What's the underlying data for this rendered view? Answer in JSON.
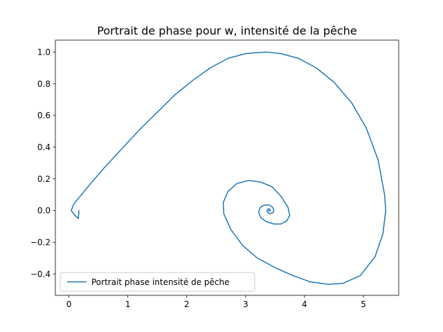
{
  "chart_data": {
    "type": "line",
    "title": "Portrait de phase pour w, intensité de la pêche",
    "xlabel": "",
    "ylabel": "",
    "xlim": [
      -0.23,
      5.6
    ],
    "ylim": [
      -0.535,
      1.075
    ],
    "x_ticks": [
      0,
      1,
      2,
      3,
      4,
      5
    ],
    "y_ticks": [
      -0.4,
      -0.2,
      0.0,
      0.2,
      0.4,
      0.6,
      0.8,
      1.0
    ],
    "y_tick_labels": [
      "−0.4",
      "−0.2",
      "0.0",
      "0.2",
      "0.4",
      "0.6",
      "0.8",
      "1.0"
    ],
    "grid": false,
    "legend_position": "lower-left",
    "series": [
      {
        "name": "Portrait phase intensité de pêche",
        "color": "#1f77b4",
        "points": [
          [
            0.17,
            0.0
          ],
          [
            0.16,
            -0.05
          ],
          [
            0.1,
            -0.03
          ],
          [
            0.04,
            0.0
          ],
          [
            0.08,
            0.04
          ],
          [
            0.3,
            0.14
          ],
          [
            0.6,
            0.27
          ],
          [
            0.9,
            0.39
          ],
          [
            1.2,
            0.51
          ],
          [
            1.5,
            0.62
          ],
          [
            1.8,
            0.73
          ],
          [
            2.1,
            0.82
          ],
          [
            2.4,
            0.9
          ],
          [
            2.7,
            0.96
          ],
          [
            3.0,
            0.99
          ],
          [
            3.35,
            1.0
          ],
          [
            3.6,
            0.99
          ],
          [
            3.9,
            0.96
          ],
          [
            4.2,
            0.9
          ],
          [
            4.5,
            0.81
          ],
          [
            4.8,
            0.68
          ],
          [
            5.05,
            0.52
          ],
          [
            5.25,
            0.32
          ],
          [
            5.36,
            0.1
          ],
          [
            5.38,
            0.0
          ],
          [
            5.33,
            -0.15
          ],
          [
            5.2,
            -0.29
          ],
          [
            4.95,
            -0.41
          ],
          [
            4.65,
            -0.46
          ],
          [
            4.4,
            -0.465
          ],
          [
            4.1,
            -0.45
          ],
          [
            3.8,
            -0.41
          ],
          [
            3.5,
            -0.36
          ],
          [
            3.2,
            -0.3
          ],
          [
            2.95,
            -0.22
          ],
          [
            2.75,
            -0.12
          ],
          [
            2.63,
            -0.02
          ],
          [
            2.62,
            0.05
          ],
          [
            2.7,
            0.12
          ],
          [
            2.85,
            0.17
          ],
          [
            3.05,
            0.19
          ],
          [
            3.25,
            0.18
          ],
          [
            3.45,
            0.15
          ],
          [
            3.6,
            0.09
          ],
          [
            3.72,
            0.02
          ],
          [
            3.75,
            -0.03
          ],
          [
            3.7,
            -0.065
          ],
          [
            3.6,
            -0.085
          ],
          [
            3.48,
            -0.085
          ],
          [
            3.35,
            -0.07
          ],
          [
            3.26,
            -0.045
          ],
          [
            3.22,
            -0.01
          ],
          [
            3.25,
            0.02
          ],
          [
            3.32,
            0.035
          ],
          [
            3.4,
            0.035
          ],
          [
            3.46,
            0.02
          ],
          [
            3.48,
            0.0
          ],
          [
            3.46,
            -0.015
          ],
          [
            3.41,
            -0.02
          ],
          [
            3.37,
            -0.01
          ],
          [
            3.36,
            0.0
          ],
          [
            3.38,
            0.01
          ],
          [
            3.41,
            0.01
          ],
          [
            3.42,
            0.0
          ],
          [
            3.4,
            -0.004
          ],
          [
            3.39,
            0.0
          ]
        ]
      }
    ]
  }
}
